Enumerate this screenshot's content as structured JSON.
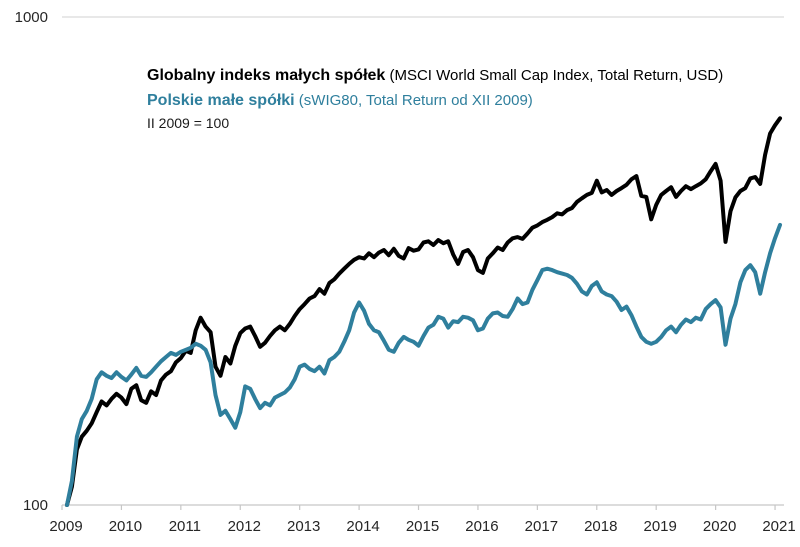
{
  "header": {
    "series1_title": "Globalny indeks małych spółek",
    "series1_paren": " (MSCI World Small Cap Index, Total Return, USD)",
    "series2_title": "Polskie małe spółki",
    "series2_paren": " (sWIG80, Total Return od XII 2009)",
    "base_note": "II 2009 = 100"
  },
  "colors": {
    "series1": "#000000",
    "series2": "#2f7f9d",
    "grid": "#d9d9d9",
    "axis": "#c6c6c6",
    "text": "#262626"
  },
  "axes": {
    "y_scale": "log",
    "y_ticks": [
      {
        "value": 1000,
        "label": "1000"
      },
      {
        "value": 100,
        "label": "100"
      }
    ],
    "x_ticks": [
      {
        "year": 2009,
        "label": "2009"
      },
      {
        "year": 2010,
        "label": "2010"
      },
      {
        "year": 2011,
        "label": "2011"
      },
      {
        "year": 2012,
        "label": "2012"
      },
      {
        "year": 2013,
        "label": "2013"
      },
      {
        "year": 2014,
        "label": "2014"
      },
      {
        "year": 2015,
        "label": "2015"
      },
      {
        "year": 2016,
        "label": "2016"
      },
      {
        "year": 2017,
        "label": "2017"
      },
      {
        "year": 2018,
        "label": "2018"
      },
      {
        "year": 2019,
        "label": "2019"
      },
      {
        "year": 2020,
        "label": "2020"
      },
      {
        "year": 2021,
        "label": "2021"
      }
    ]
  },
  "chart_data": {
    "type": "line",
    "title": "Globalny indeks małych spółek vs Polskie małe spółki",
    "note": "II 2009 = 100",
    "y_scale": "log",
    "ylim": [
      100,
      1000
    ],
    "xlim": [
      2009,
      2021.2
    ],
    "frequency": "monthly",
    "start": "2009-02",
    "end": "2021-02",
    "legend_position": "top-inside",
    "grid": "top-gridline-only",
    "series": [
      {
        "id": "msci-world-small-cap",
        "name": "Globalny indeks małych spółek (MSCI World Small Cap Index, Total Return, USD)",
        "color_key": "series1",
        "values": [
          100,
          109,
          130,
          138,
          142,
          147,
          155,
          163,
          160,
          165,
          169,
          166,
          161,
          173,
          176,
          164,
          162,
          171,
          168,
          180,
          185,
          188,
          196,
          200,
          207,
          205,
          228,
          242,
          232,
          226,
          192,
          184,
          201,
          195,
          212,
          225,
          230,
          232,
          222,
          211,
          215,
          222,
          228,
          232,
          228,
          235,
          244,
          252,
          258,
          265,
          268,
          277,
          271,
          285,
          290,
          298,
          305,
          312,
          318,
          322,
          320,
          328,
          322,
          329,
          333,
          325,
          335,
          324,
          320,
          336,
          332,
          334,
          345,
          347,
          341,
          349,
          344,
          347,
          326,
          312,
          330,
          333,
          322,
          303,
          299,
          320,
          328,
          337,
          333,
          345,
          352,
          354,
          351,
          360,
          370,
          374,
          380,
          384,
          389,
          396,
          394,
          402,
          406,
          418,
          425,
          432,
          436,
          462,
          437,
          442,
          432,
          440,
          446,
          453,
          465,
          472,
          430,
          428,
          385,
          412,
          432,
          440,
          448,
          428,
          440,
          450,
          444,
          450,
          456,
          465,
          483,
          500,
          462,
          346,
          400,
          427,
          440,
          446,
          467,
          470,
          455,
          522,
          577,
          600,
          620
        ]
      },
      {
        "id": "swig80",
        "name": "Polskie małe spółki (sWIG80, Total Return od XII 2009)",
        "color_key": "series2",
        "values": [
          100,
          112,
          138,
          150,
          156,
          165,
          181,
          187,
          184,
          182,
          187,
          183,
          180,
          185,
          191,
          184,
          183,
          187,
          192,
          197,
          201,
          205,
          203,
          206,
          208,
          210,
          214,
          212,
          208,
          196,
          168,
          153,
          156,
          150,
          144,
          155,
          175,
          173,
          165,
          158,
          162,
          160,
          166,
          168,
          170,
          174,
          181,
          192,
          194,
          190,
          188,
          192,
          186,
          198,
          201,
          206,
          216,
          228,
          248,
          260,
          250,
          235,
          228,
          226,
          217,
          208,
          206,
          215,
          221,
          218,
          216,
          212,
          222,
          231,
          234,
          243,
          241,
          231,
          238,
          237,
          243,
          242,
          239,
          228,
          230,
          241,
          247,
          248,
          244,
          243,
          252,
          265,
          258,
          260,
          276,
          289,
          303,
          305,
          303,
          300,
          298,
          296,
          292,
          284,
          274,
          270,
          281,
          286,
          274,
          270,
          268,
          261,
          251,
          255,
          245,
          232,
          221,
          216,
          214,
          216,
          221,
          228,
          232,
          226,
          234,
          240,
          237,
          242,
          240,
          252,
          258,
          263,
          254,
          213,
          241,
          258,
          286,
          303,
          310,
          300,
          271,
          300,
          328,
          352,
          375
        ]
      }
    ]
  }
}
